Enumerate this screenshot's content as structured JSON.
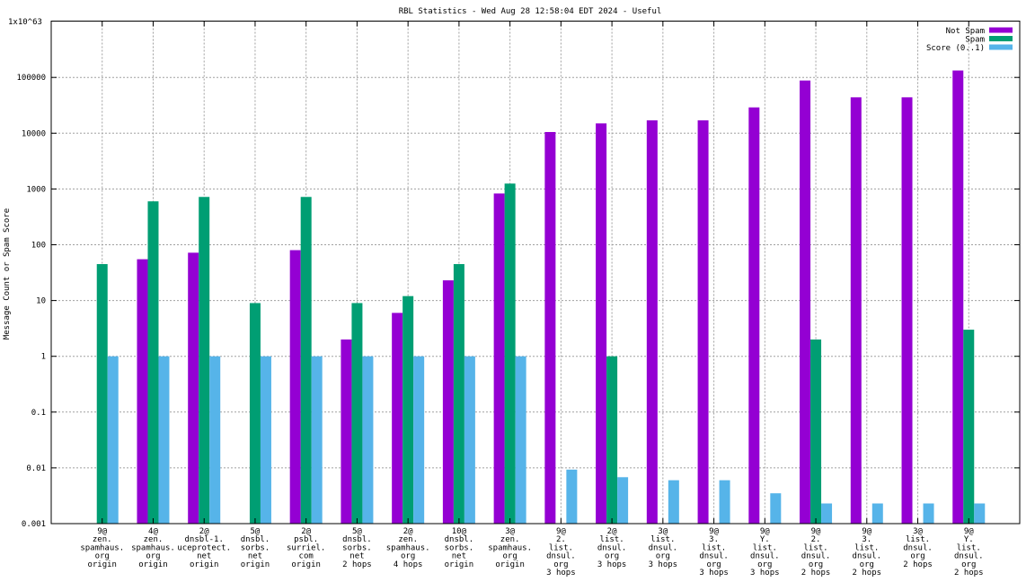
{
  "chart_data": {
    "type": "bar",
    "title": "RBL Statistics - Wed Aug 28 12:58:04 EDT 2024 - Useful",
    "ylabel": "Message Count or Spam Score",
    "xlabel": "",
    "y_scale": "log",
    "ylim": [
      0.001,
      1e+63
    ],
    "y_ticks": [
      {
        "value": 0.001,
        "label": "0.001"
      },
      {
        "value": 0.01,
        "label": "0.01"
      },
      {
        "value": 0.1,
        "label": "0.1"
      },
      {
        "value": 1,
        "label": "1"
      },
      {
        "value": 10,
        "label": "10"
      },
      {
        "value": 100,
        "label": "100"
      },
      {
        "value": 1000,
        "label": "1000"
      },
      {
        "value": 10000,
        "label": "10000"
      },
      {
        "value": 100000,
        "label": "100000"
      }
    ],
    "top_label": "1x10^63",
    "grid": true,
    "legend": "top-right",
    "categories": [
      [
        "9@",
        "zen.",
        "spamhaus.",
        "org",
        "origin"
      ],
      [
        "4@",
        "zen.",
        "spamhaus.",
        "org",
        "origin"
      ],
      [
        "2@",
        "dnsbl-1.",
        "uceprotect.",
        "net",
        "origin"
      ],
      [
        "5@",
        "dnsbl.",
        "sorbs.",
        "net",
        "origin"
      ],
      [
        "2@",
        "psbl.",
        "surriel.",
        "com",
        "origin"
      ],
      [
        "5@",
        "dnsbl.",
        "sorbs.",
        "net",
        "2 hops"
      ],
      [
        "2@",
        "zen.",
        "spamhaus.",
        "org",
        "4 hops"
      ],
      [
        "10@",
        "dnsbl.",
        "sorbs.",
        "net",
        "origin"
      ],
      [
        "3@",
        "zen.",
        "spamhaus.",
        "org",
        "origin"
      ],
      [
        "9@",
        "2.",
        "list.",
        "dnsul.",
        "org",
        "3 hops"
      ],
      [
        "2@",
        "list.",
        "dnsul.",
        "org",
        "3 hops"
      ],
      [
        "3@",
        "list.",
        "dnsul.",
        "org",
        "3 hops"
      ],
      [
        "9@",
        "3.",
        "list.",
        "dnsul.",
        "org",
        "3 hops"
      ],
      [
        "9@",
        "Y.",
        "list.",
        "dnsul.",
        "org",
        "3 hops"
      ],
      [
        "9@",
        "2.",
        "list.",
        "dnsul.",
        "org",
        "2 hops"
      ],
      [
        "9@",
        "3.",
        "list.",
        "dnsul.",
        "org",
        "2 hops"
      ],
      [
        "3@",
        "list.",
        "dnsul.",
        "org",
        "2 hops"
      ],
      [
        "9@",
        "Y.",
        "list.",
        "dnsul.",
        "org",
        "2 hops"
      ]
    ],
    "series": [
      {
        "name": "Not Spam",
        "color": "#9400d3",
        "values": [
          null,
          55,
          72,
          null,
          80,
          2,
          6,
          23,
          830,
          10500,
          15000,
          17000,
          17000,
          29000,
          88000,
          44000,
          44000,
          133000
        ]
      },
      {
        "name": "Spam",
        "color": "#009e73",
        "values": [
          45,
          600,
          720,
          9,
          720,
          9,
          12,
          45,
          1250,
          null,
          1,
          null,
          null,
          null,
          2,
          null,
          null,
          3
        ]
      },
      {
        "name": "Score (0..1)",
        "color": "#56b4e9",
        "values": [
          1,
          1,
          1,
          1,
          1,
          1,
          1,
          1,
          1,
          0.0093,
          0.0068,
          0.006,
          0.006,
          0.0035,
          0.0023,
          0.0023,
          0.0023,
          0.0023
        ]
      }
    ]
  }
}
